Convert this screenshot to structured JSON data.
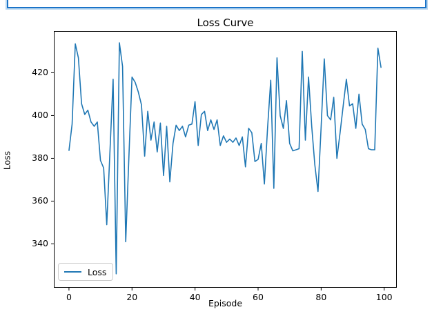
{
  "window": {
    "top_focus_box": "empty focused input strip (partially cut off at top of screenshot)"
  },
  "chart_data": {
    "type": "line",
    "title": "Loss Curve",
    "xlabel": "Episode",
    "ylabel": "Loss",
    "legend": {
      "entries": [
        "Loss"
      ],
      "position": "lower left"
    },
    "line_color": "#1f77b4",
    "grid": "off",
    "x_ticks": [
      0,
      20,
      40,
      60,
      80,
      100
    ],
    "y_ticks": [
      340,
      360,
      380,
      400,
      420
    ],
    "xlim": [
      -4.8,
      104.0
    ],
    "ylim": [
      319.5,
      439.5
    ],
    "x_start": 0,
    "x_step": 1,
    "series": [
      {
        "name": "Loss",
        "values": [
          383.5,
          396,
          433.5,
          427,
          405.5,
          400.5,
          402.5,
          397,
          395,
          397,
          379,
          375.5,
          349,
          383,
          417,
          326,
          434,
          423,
          341,
          380,
          418,
          415.5,
          411,
          405,
          381,
          402,
          388.5,
          397,
          383,
          396.5,
          372,
          395,
          369,
          387,
          395.5,
          393,
          395,
          390,
          395.5,
          396,
          406.5,
          386,
          400.5,
          402,
          393,
          398,
          393.5,
          398,
          386,
          390.5,
          387.5,
          389,
          387.5,
          389.5,
          386,
          390,
          376,
          394,
          392,
          378.5,
          379.5,
          387,
          368,
          394,
          416.5,
          366,
          427,
          400,
          394,
          407,
          387,
          383.5,
          384,
          384.5,
          430,
          388.5,
          418,
          395,
          377,
          364.5,
          395,
          426.5,
          400,
          398,
          408.5,
          380,
          392,
          404.5,
          417,
          404.5,
          405.5,
          394,
          410,
          396,
          393.5,
          384.5,
          384,
          384,
          431.5,
          422.3
        ]
      }
    ]
  }
}
